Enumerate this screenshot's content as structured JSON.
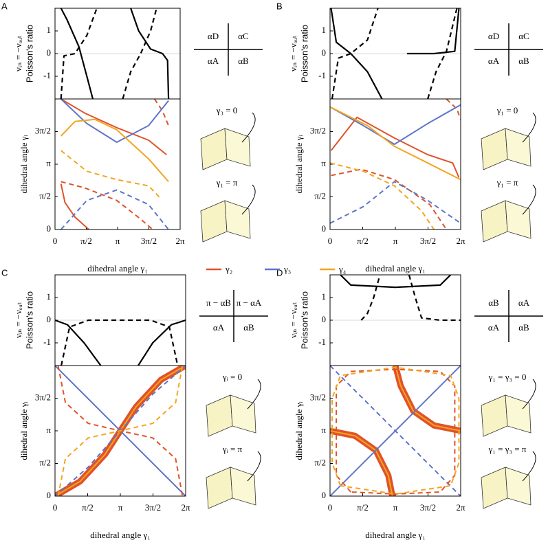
{
  "chart_data": [
    {
      "type": "line",
      "panel": "A",
      "ylabel": [
        "νᵢₙ = −νₒᵤₜ",
        "Poisson's ratio"
      ],
      "xlim": [
        0,
        6.2832
      ],
      "ylim": [
        -2,
        2
      ],
      "yticks": [
        -1,
        0,
        1
      ],
      "zero_line": true,
      "series": [
        {
          "color": "#000000",
          "dash": false,
          "x": [
            0.3,
            0.6,
            1.2,
            1.6,
            1.9
          ],
          "values": [
            2,
            1.5,
            0.3,
            -1,
            -2
          ]
        },
        {
          "color": "#000000",
          "dash": false,
          "x": [
            3.8,
            4.2,
            4.8,
            5.4,
            5.65,
            5.7
          ],
          "values": [
            2,
            1,
            0.2,
            0,
            -0.3,
            -2
          ]
        },
        {
          "color": "#000000",
          "dash": true,
          "x": [
            0.3,
            0.45,
            1.0,
            1.6,
            2.1
          ],
          "values": [
            -2,
            -0.1,
            0,
            0.8,
            2
          ]
        },
        {
          "color": "#000000",
          "dash": true,
          "x": [
            3.4,
            3.8,
            4.3,
            4.8,
            5.1
          ],
          "values": [
            -2,
            -0.8,
            0,
            1,
            2
          ]
        }
      ]
    },
    {
      "type": "line",
      "ylabel": [
        "dihedral angle γᵢ"
      ],
      "xlabel": "dihedral angle γ₁",
      "xlim": [
        0,
        6.2832
      ],
      "ylim": [
        0,
        6.2832
      ],
      "xticks": [
        0,
        {
          "value": 1.5708,
          "label": "π/2"
        },
        {
          "value": 3.1416,
          "label": "π"
        },
        {
          "value": 4.7124,
          "label": "3π/2"
        },
        {
          "value": 6.2832,
          "label": "2π"
        }
      ],
      "yticks": [
        0,
        {
          "value": 1.5708,
          "label": "π/2"
        },
        {
          "value": 3.1416,
          "label": "π"
        },
        {
          "value": 4.7124,
          "label": "3π/2"
        }
      ],
      "series": [
        {
          "color": "#e0522a",
          "dash": false,
          "x": [
            0.3,
            1.5,
            3.1,
            4.7,
            5.6
          ],
          "values": [
            6.28,
            5.6,
            4.9,
            4.3,
            3.6
          ]
        },
        {
          "color": "#e0522a",
          "dash": false,
          "x": [
            0.3,
            0.5,
            1.0,
            1.7
          ],
          "values": [
            2.2,
            1.3,
            0.6,
            0
          ]
        },
        {
          "color": "#e0522a",
          "dash": true,
          "x": [
            0.3,
            1.5,
            3.1,
            4.3,
            4.9
          ],
          "values": [
            2.3,
            2.0,
            1.4,
            0.5,
            0
          ]
        },
        {
          "color": "#e0522a",
          "dash": true,
          "x": [
            5.0,
            5.4,
            5.7
          ],
          "values": [
            6.28,
            5.7,
            5.0
          ]
        },
        {
          "color": "#5e74c8",
          "dash": false,
          "x": [
            0.3,
            1.6,
            3.1,
            4.7,
            5.7
          ],
          "values": [
            6.28,
            5.1,
            4.2,
            5.0,
            6.2
          ]
        },
        {
          "color": "#5e74c8",
          "dash": true,
          "x": [
            0.3,
            1.6,
            3.1,
            4.7,
            5.7
          ],
          "values": [
            0,
            1.4,
            1.9,
            1.2,
            0
          ]
        },
        {
          "color": "#f3a51d",
          "dash": false,
          "x": [
            0.3,
            1.0,
            2.0,
            3.1,
            4.7,
            5.7
          ],
          "values": [
            4.5,
            5.2,
            5.3,
            4.8,
            3.4,
            2.3
          ]
        },
        {
          "color": "#f3a51d",
          "dash": true,
          "x": [
            0.3,
            1.6,
            3.1,
            4.7,
            5.3
          ],
          "values": [
            3.8,
            2.8,
            2.4,
            2.1,
            1.5
          ]
        }
      ]
    },
    {
      "type": "line",
      "panel": "B",
      "ylabel": [
        "νᵢₙ = −νₒᵤₜ",
        "Poisson's ratio"
      ],
      "xlim": [
        0,
        6.2832
      ],
      "ylim": [
        -2,
        2
      ],
      "yticks": [
        -1,
        0,
        1
      ],
      "zero_line": true,
      "series": [
        {
          "color": "#000000",
          "dash": false,
          "x": [
            0.05,
            0.3,
            1.0,
            1.8,
            2.5
          ],
          "values": [
            2,
            0.5,
            0,
            -0.8,
            -2
          ]
        },
        {
          "color": "#000000",
          "dash": false,
          "x": [
            3.7,
            5.0,
            6.0,
            6.2
          ],
          "values": [
            0,
            0,
            0.1,
            2
          ]
        },
        {
          "color": "#000000",
          "dash": true,
          "x": [
            0.1,
            0.4,
            1.0,
            1.8,
            2.3
          ],
          "values": [
            -2,
            -0.2,
            0,
            0.6,
            2
          ]
        },
        {
          "color": "#000000",
          "dash": true,
          "x": [
            4.7,
            5.1,
            5.6,
            6.1
          ],
          "values": [
            -2,
            -0.8,
            0.1,
            2
          ]
        }
      ]
    },
    {
      "type": "line",
      "ylabel": [
        "dihedral angle γᵢ"
      ],
      "xlabel": "dihedral angle γ₁",
      "xlim": [
        0,
        6.2832
      ],
      "ylim": [
        0,
        6.2832
      ],
      "xticks": [
        0,
        {
          "value": 1.5708,
          "label": "π/2"
        },
        {
          "value": 3.1416,
          "label": "π"
        },
        {
          "value": 4.7124,
          "label": "3π/2"
        },
        {
          "value": 6.2832,
          "label": "2π"
        }
      ],
      "yticks": [
        0,
        {
          "value": 1.5708,
          "label": "π/2"
        },
        {
          "value": 3.1416,
          "label": "π"
        },
        {
          "value": 4.7124,
          "label": "3π/2"
        }
      ],
      "series": [
        {
          "color": "#e0522a",
          "dash": false,
          "x": [
            0.05,
            1.3,
            3.1,
            4.7,
            5.9,
            6.2
          ],
          "values": [
            3.8,
            5.4,
            4.4,
            3.6,
            3.2,
            2.5
          ]
        },
        {
          "color": "#e0522a",
          "dash": true,
          "x": [
            0.05,
            1.5,
            3.1,
            4.8,
            5.6
          ],
          "values": [
            2.6,
            2.9,
            2.4,
            1.2,
            0
          ]
        },
        {
          "color": "#e0522a",
          "dash": true,
          "x": [
            5.6,
            6.1,
            6.28
          ],
          "values": [
            6.28,
            5.8,
            5.3
          ]
        },
        {
          "color": "#5e74c8",
          "dash": false,
          "x": [
            0,
            1.6,
            3.1,
            4.7,
            6.28
          ],
          "values": [
            5.9,
            5.0,
            4.1,
            5.1,
            6.0
          ]
        },
        {
          "color": "#5e74c8",
          "dash": true,
          "x": [
            0,
            1.6,
            3.1,
            4.7,
            6.28
          ],
          "values": [
            0.3,
            1.1,
            2.3,
            1.4,
            0.3
          ]
        },
        {
          "color": "#f3a51d",
          "dash": false,
          "x": [
            0,
            0.8,
            1.8,
            3.1,
            4.7,
            6.28
          ],
          "values": [
            5.9,
            5.5,
            5.0,
            4.0,
            3.2,
            2.4
          ]
        },
        {
          "color": "#f3a51d",
          "dash": true,
          "x": [
            0,
            1.6,
            3.1,
            4.4,
            5.0
          ],
          "values": [
            3.2,
            2.8,
            2.1,
            0.9,
            0
          ]
        }
      ]
    },
    {
      "type": "line",
      "panel": "C",
      "ylabel": [
        "νᵢₙ = −νₒᵤₜ",
        "Poisson's ratio"
      ],
      "xlim": [
        0,
        6.2832
      ],
      "ylim": [
        -2,
        2
      ],
      "yticks": [
        -1,
        0,
        1
      ],
      "zero_line": true,
      "series": [
        {
          "color": "#000000",
          "dash": false,
          "x": [
            0,
            0.6,
            1.4,
            2.2
          ],
          "values": [
            0,
            -0.2,
            -1,
            -2
          ]
        },
        {
          "color": "#000000",
          "dash": false,
          "x": [
            4.0,
            4.7,
            5.6,
            6.28
          ],
          "values": [
            -2,
            -1,
            -0.2,
            0
          ]
        },
        {
          "color": "#000000",
          "dash": true,
          "x": [
            0.3,
            0.7,
            1.6,
            3.1,
            4.6,
            5.5,
            5.9
          ],
          "values": [
            -2,
            -0.3,
            0,
            0,
            0,
            -0.3,
            -2
          ]
        }
      ]
    },
    {
      "type": "line",
      "ylabel": [
        "dihedral angle γᵢ"
      ],
      "xlabel": "dihedral angle γ₁",
      "xlim": [
        0,
        6.2832
      ],
      "ylim": [
        0,
        6.2832
      ],
      "xticks": [
        0,
        {
          "value": 1.5708,
          "label": "π/2"
        },
        {
          "value": 3.1416,
          "label": "π"
        },
        {
          "value": 4.7124,
          "label": "3π/2"
        },
        {
          "value": 6.2832,
          "label": "2π"
        }
      ],
      "yticks": [
        0,
        {
          "value": 1.5708,
          "label": "π/2"
        },
        {
          "value": 3.1416,
          "label": "π"
        },
        {
          "value": 4.7124,
          "label": "3π/2"
        }
      ],
      "series": [
        {
          "color": "#e0522a",
          "dash": false,
          "thick": true,
          "x": [
            0,
            1.2,
            2.4,
            3.14,
            3.9,
            5.1,
            6.28
          ],
          "values": [
            0,
            0.7,
            2.0,
            3.14,
            4.3,
            5.6,
            6.28
          ]
        },
        {
          "color": "#5e74c8",
          "dash": false,
          "x": [
            0,
            6.28
          ],
          "values": [
            6.28,
            0
          ]
        },
        {
          "color": "#5e74c8",
          "dash": true,
          "x": [
            0,
            1.6,
            3.14,
            4.7,
            6.28
          ],
          "values": [
            0,
            1.4,
            3.14,
            4.9,
            6.28
          ]
        },
        {
          "color": "#e0522a",
          "dash": true,
          "x": [
            0.15,
            0.5,
            1.6,
            3.14,
            4.7,
            5.8,
            6.13
          ],
          "values": [
            6.28,
            4.5,
            3.5,
            3.14,
            2.8,
            1.8,
            0
          ]
        },
        {
          "color": "#f3a51d",
          "dash": true,
          "x": [
            0.15,
            0.5,
            1.6,
            3.14,
            4.7,
            5.8,
            6.13
          ],
          "values": [
            0,
            1.8,
            2.8,
            3.14,
            3.5,
            4.5,
            6.28
          ]
        }
      ]
    },
    {
      "type": "line",
      "panel": "D",
      "ylabel": [
        "νᵢₙ = −νₒᵤₜ",
        "Poisson's ratio"
      ],
      "xlim": [
        0,
        6.2832
      ],
      "ylim": [
        -2,
        2
      ],
      "yticks": [
        -1,
        0,
        1
      ],
      "zero_line": true,
      "series": [
        {
          "color": "#000000",
          "dash": false,
          "x": [
            0.5,
            1.0,
            3.14,
            5.3,
            5.8
          ],
          "values": [
            2,
            1.55,
            1.45,
            1.55,
            2
          ]
        },
        {
          "color": "#000000",
          "dash": true,
          "x": [
            1.5,
            1.8,
            2.1,
            2.4
          ],
          "values": [
            0,
            0.3,
            1.0,
            2
          ]
        },
        {
          "color": "#000000",
          "dash": true,
          "x": [
            3.8,
            4.1,
            4.4,
            5.3,
            6.28
          ],
          "values": [
            2,
            1.0,
            0.1,
            0,
            0
          ]
        }
      ]
    },
    {
      "type": "line",
      "ylabel": [
        "dihedral angle γᵢ"
      ],
      "xlabel": "dihedral angle γ₁",
      "xlim": [
        0,
        6.2832
      ],
      "ylim": [
        0,
        6.2832
      ],
      "xticks": [
        0,
        {
          "value": 1.5708,
          "label": "π/2"
        },
        {
          "value": 3.1416,
          "label": "π"
        },
        {
          "value": 4.7124,
          "label": "3π/2"
        },
        {
          "value": 6.2832,
          "label": "2π"
        }
      ],
      "yticks": [
        0,
        {
          "value": 1.5708,
          "label": "π/2"
        },
        {
          "value": 3.1416,
          "label": "π"
        },
        {
          "value": 4.7124,
          "label": "3π/2"
        }
      ],
      "series": [
        {
          "color": "#e0522a",
          "dash": false,
          "thick": true,
          "x": [
            0,
            1.2,
            2.2,
            2.8,
            3.0
          ],
          "values": [
            3.14,
            2.9,
            2.2,
            1.0,
            0
          ]
        },
        {
          "color": "#e0522a",
          "dash": false,
          "thick": true,
          "x": [
            3.14,
            3.4,
            4.0,
            5.0,
            6.28
          ],
          "values": [
            6.28,
            5.3,
            4.1,
            3.4,
            3.14
          ]
        },
        {
          "color": "#5e74c8",
          "dash": false,
          "x": [
            0,
            6.28
          ],
          "values": [
            0,
            6.28
          ]
        },
        {
          "color": "#5e74c8",
          "dash": true,
          "x": [
            0,
            6.28
          ],
          "values": [
            6.28,
            0
          ]
        },
        {
          "color": "#e0522a",
          "dash": true,
          "x": [
            1.0,
            0.3,
            0.3,
            1.0,
            3.14,
            5.3,
            6.0,
            6.0,
            5.3,
            3.14,
            1.0
          ],
          "values": [
            0.2,
            1.0,
            5.3,
            6.0,
            6.1,
            6.0,
            5.3,
            1.0,
            0.2,
            0.1,
            0.2
          ]
        },
        {
          "color": "#f3a51d",
          "dash": true,
          "x": [
            0.5,
            0.1,
            0.1,
            0.5,
            3.14,
            5.8,
            6.2,
            6.2,
            5.8,
            3.14,
            0.5
          ],
          "values": [
            0.5,
            1.6,
            4.7,
            5.8,
            6.2,
            5.8,
            4.7,
            1.6,
            0.5,
            0.1,
            0.5
          ]
        }
      ]
    }
  ],
  "legend": [
    {
      "name": "γ₂",
      "color": "#e0522a"
    },
    {
      "name": "γ₃",
      "color": "#5e74c8"
    },
    {
      "name": "γ₄",
      "color": "#f3a51d"
    }
  ],
  "angles": [
    [
      "αD",
      "αC",
      "αA",
      "αB"
    ],
    [
      "αD",
      "αC",
      "αA",
      "αB"
    ],
    [
      "π − αB",
      "π − αA",
      "αA",
      "αB"
    ],
    [
      "αB",
      "αA",
      "αA",
      "αB"
    ]
  ],
  "annotations": [
    [
      "γ₃ = 0",
      "γ₁ = π"
    ],
    [
      "γ₁ = 0",
      "γ₁ = π"
    ],
    [
      "γᵢ = 0",
      "γᵢ = π"
    ],
    [
      "γ₁ = γ₃ = 0",
      "γ₁ = γ₃ = π"
    ]
  ]
}
